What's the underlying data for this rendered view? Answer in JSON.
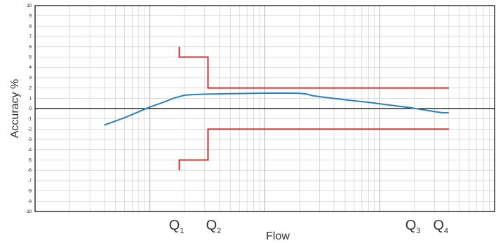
{
  "chart_data": {
    "type": "line",
    "xlabel": "Flow",
    "ylabel": "Accuracy %",
    "x_scale": "log",
    "ylim": [
      -10,
      10
    ],
    "y_ticks": [
      "10",
      "9",
      "8",
      "7",
      "6",
      "5",
      "4",
      "3",
      "2",
      "1",
      "0",
      "-1",
      "-2",
      "-3",
      "-4",
      "-5",
      "-6",
      "-7",
      "-8",
      "-9",
      "-10"
    ],
    "grid": true,
    "x_markers": [
      {
        "label": "Q",
        "sub": "1",
        "x": 0.18
      },
      {
        "label": "Q",
        "sub": "2",
        "x": 0.32
      },
      {
        "label": "Q",
        "sub": "3",
        "x": 20
      },
      {
        "label": "Q",
        "sub": "4",
        "x": 33
      }
    ],
    "series": [
      {
        "color": "#2b7fc0",
        "x": [
          0.04,
          0.06,
          0.08,
          0.1,
          0.13,
          0.16,
          0.2,
          0.26,
          0.32,
          0.5,
          0.8,
          1.2,
          1.6,
          2.0,
          2.3,
          2.6,
          3.3,
          5,
          8,
          12,
          18,
          25,
          30,
          36,
          40
        ],
        "y": [
          -1.6,
          -0.9,
          -0.3,
          0.15,
          0.6,
          1.0,
          1.3,
          1.38,
          1.4,
          1.45,
          1.48,
          1.5,
          1.5,
          1.48,
          1.42,
          1.25,
          1.1,
          0.85,
          0.6,
          0.35,
          0.1,
          -0.15,
          -0.3,
          -0.42,
          -0.4
        ]
      }
    ],
    "limits": [
      {
        "color": "#d32f2f",
        "x": [
          0.18,
          0.18,
          0.32,
          0.32,
          40
        ],
        "y": [
          6,
          5,
          5,
          2,
          2
        ]
      },
      {
        "color": "#d32f2f",
        "x": [
          0.18,
          0.18,
          0.32,
          0.32,
          40
        ],
        "y": [
          -6,
          -5,
          -5,
          -2,
          -2
        ]
      }
    ]
  }
}
